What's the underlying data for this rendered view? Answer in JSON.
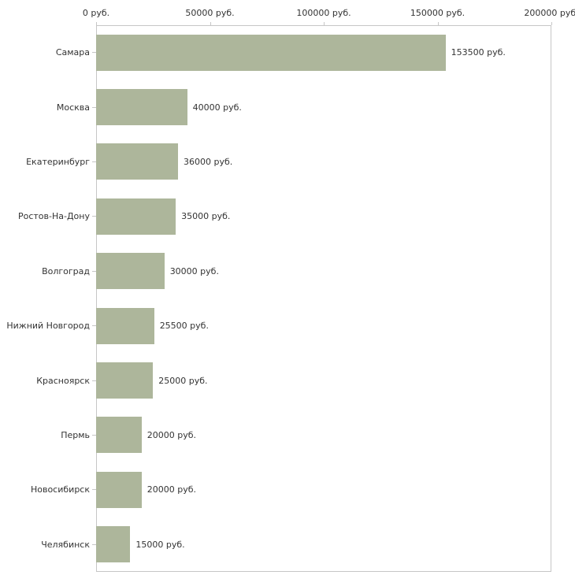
{
  "chart_data": {
    "type": "bar",
    "orientation": "horizontal",
    "title": "",
    "xlabel": "",
    "ylabel": "",
    "categories": [
      "Самара",
      "Москва",
      "Екатеринбург",
      "Ростов-На-Дону",
      "Волгоград",
      "Нижний Новгород",
      "Красноярск",
      "Пермь",
      "Новосибирск",
      "Челябинск"
    ],
    "values": [
      153500,
      40000,
      36000,
      35000,
      30000,
      25500,
      25000,
      20000,
      20000,
      15000
    ],
    "value_labels": [
      "153500 руб.",
      "40000 руб.",
      "36000 руб.",
      "35000 руб.",
      "30000 руб.",
      "25500 руб.",
      "25000 руб.",
      "20000 руб.",
      "20000 руб.",
      "15000 руб."
    ],
    "x_ticks": [
      0,
      50000,
      100000,
      150000,
      200000
    ],
    "x_tick_labels": [
      "0 руб.",
      "50000 руб.",
      "100000 руб.",
      "150000 руб.",
      "200000 руб."
    ],
    "xlim": [
      0,
      200000
    ],
    "grid": false,
    "legend": false,
    "bar_color": "#adb69b",
    "axis_color": "#c6c6c6",
    "text_color": "#333333",
    "background_color": "#ffffff"
  }
}
